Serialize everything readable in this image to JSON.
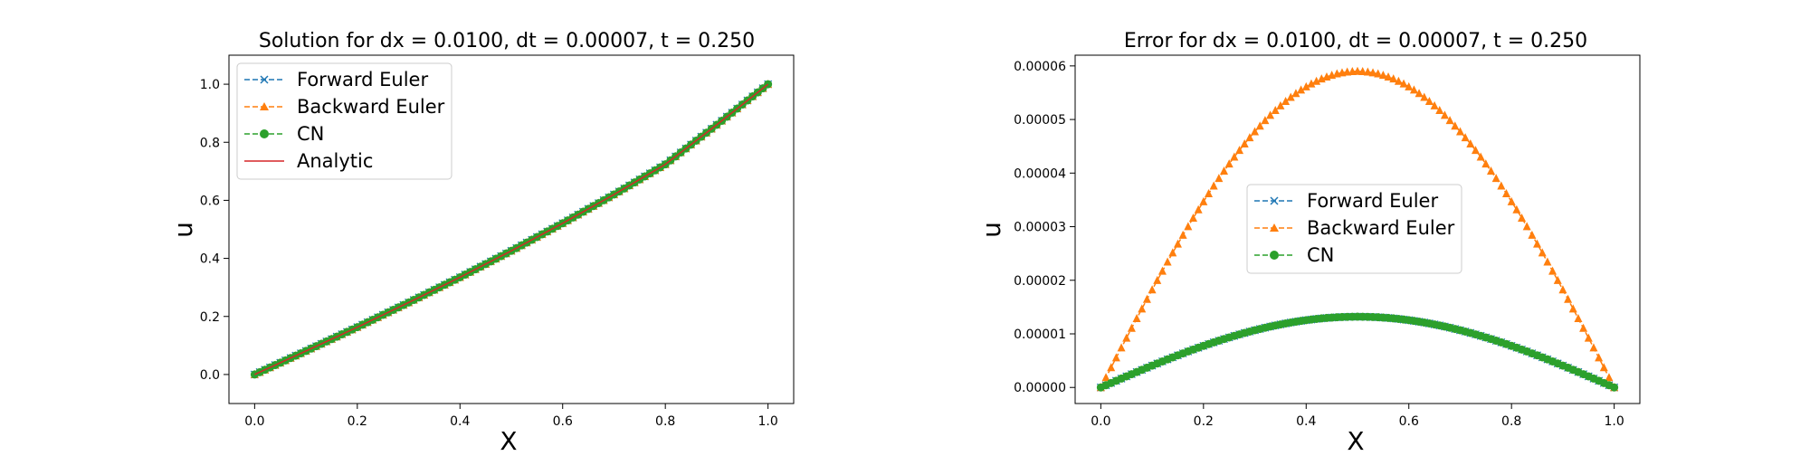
{
  "chart_data": [
    {
      "type": "line",
      "title": "Solution for dx = 0.0100, dt = 0.00007, t = 0.250",
      "xlabel": "X",
      "ylabel": "u",
      "xlim": [
        -0.05,
        1.05
      ],
      "ylim": [
        -0.1,
        1.1
      ],
      "xticks": [
        "0.0",
        "0.2",
        "0.4",
        "0.6",
        "0.8",
        "1.0"
      ],
      "yticks": [
        "0.0",
        "0.2",
        "0.4",
        "0.6",
        "0.8",
        "1.0"
      ],
      "grid": false,
      "legend_position": "upper-left",
      "x": [
        0.0,
        0.1,
        0.2,
        0.3,
        0.4,
        0.5,
        0.6,
        0.7,
        0.8,
        0.9,
        1.0
      ],
      "series": [
        {
          "name": "Forward Euler",
          "color": "#1f77b4",
          "linestyle": "dashed",
          "marker": "x",
          "values": [
            0.0,
            0.081,
            0.163,
            0.248,
            0.335,
            0.426,
            0.521,
            0.62,
            0.724,
            0.86,
            1.0
          ]
        },
        {
          "name": "Backward Euler",
          "color": "#ff7f0e",
          "linestyle": "dashed",
          "marker": "triangle",
          "values": [
            0.0,
            0.081,
            0.163,
            0.248,
            0.335,
            0.426,
            0.521,
            0.62,
            0.724,
            0.86,
            1.0
          ]
        },
        {
          "name": "CN",
          "color": "#2ca02c",
          "linestyle": "dashed",
          "marker": "circle",
          "values": [
            0.0,
            0.081,
            0.163,
            0.248,
            0.335,
            0.426,
            0.521,
            0.62,
            0.724,
            0.86,
            1.0
          ]
        },
        {
          "name": "Analytic",
          "color": "#d62728",
          "linestyle": "solid",
          "marker": "none",
          "values": [
            0.0,
            0.081,
            0.163,
            0.248,
            0.335,
            0.426,
            0.521,
            0.62,
            0.724,
            0.86,
            1.0
          ]
        }
      ]
    },
    {
      "type": "line",
      "title": "Error for dx = 0.0100, dt = 0.00007, t = 0.250",
      "xlabel": "X",
      "ylabel": "u",
      "xlim": [
        -0.05,
        1.05
      ],
      "ylim": [
        -3e-06,
        6.2e-05
      ],
      "xticks": [
        "0.0",
        "0.2",
        "0.4",
        "0.6",
        "0.8",
        "1.0"
      ],
      "yticks": [
        "0.00000",
        "0.00001",
        "0.00002",
        "0.00003",
        "0.00004",
        "0.00005",
        "0.00006"
      ],
      "grid": false,
      "legend_position": "center",
      "x": [
        0.0,
        0.1,
        0.2,
        0.3,
        0.4,
        0.5,
        0.6,
        0.7,
        0.8,
        0.9,
        1.0
      ],
      "series": [
        {
          "name": "Forward Euler",
          "color": "#1f77b4",
          "linestyle": "dashed",
          "marker": "x",
          "values": [
            0.0,
            4.3e-06,
            7.9e-06,
            1.05e-05,
            1.2e-05,
            1.32e-05,
            1.2e-05,
            1.05e-05,
            7.9e-06,
            4.3e-06,
            0.0
          ]
        },
        {
          "name": "Backward Euler",
          "color": "#ff7f0e",
          "linestyle": "dashed",
          "marker": "triangle",
          "values": [
            0.0,
            1.82e-05,
            3.46e-05,
            4.77e-05,
            5.61e-05,
            5.9e-05,
            5.61e-05,
            4.77e-05,
            3.46e-05,
            1.82e-05,
            0.0
          ]
        },
        {
          "name": "CN",
          "color": "#2ca02c",
          "linestyle": "dashed",
          "marker": "circle",
          "values": [
            0.0,
            4.1e-06,
            7.8e-06,
            1.07e-05,
            1.26e-05,
            1.32e-05,
            1.26e-05,
            1.07e-05,
            7.8e-06,
            4.1e-06,
            0.0
          ]
        }
      ]
    }
  ]
}
